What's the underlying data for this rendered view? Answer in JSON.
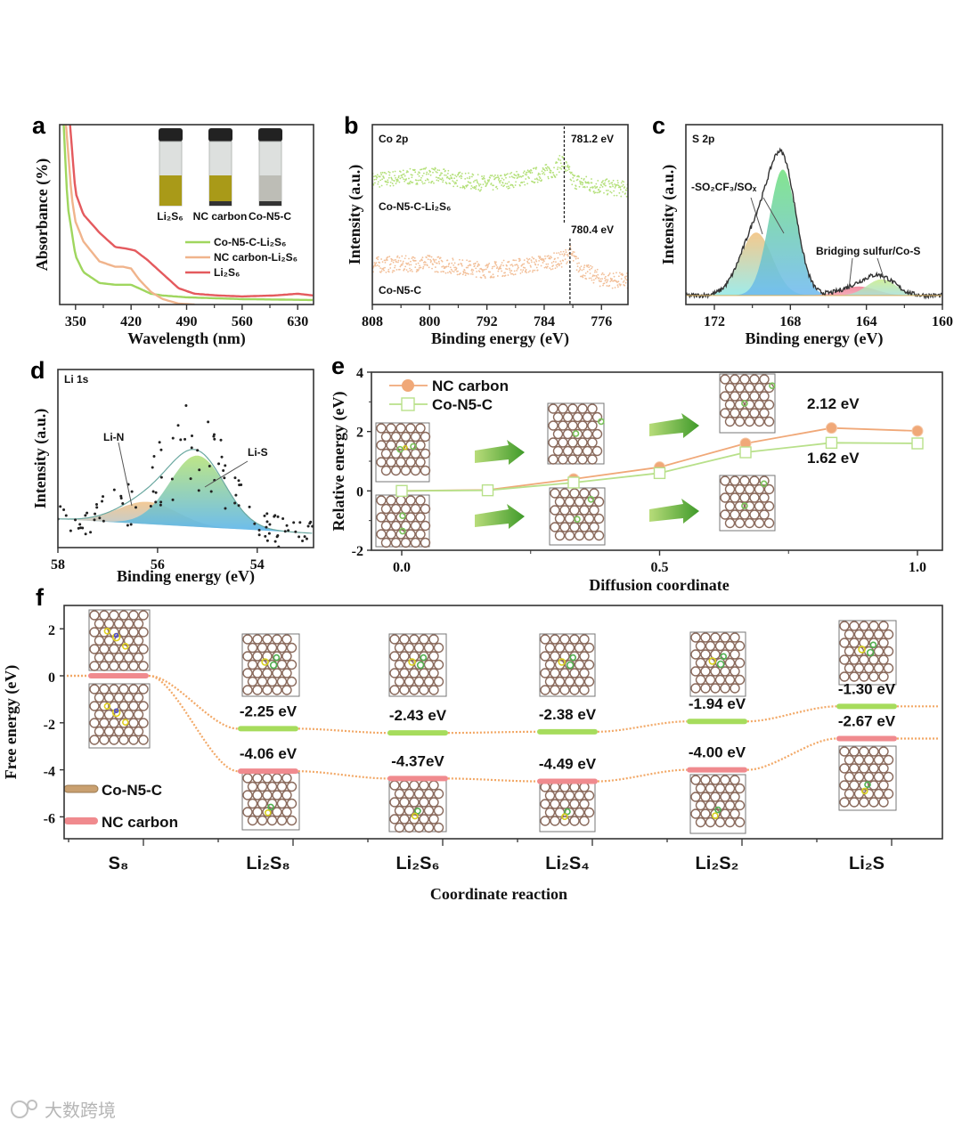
{
  "watermark": "大数跨境",
  "chart_data": [
    {
      "panel": "a",
      "type": "line",
      "xlabel": "Wavelength (nm)",
      "ylabel": "Absorbance (%)",
      "xlim": [
        330,
        650
      ],
      "ylim": [
        0,
        100
      ],
      "xticks": [
        "350",
        "420",
        "490",
        "560",
        "630"
      ],
      "inset_labels": [
        "Li₂S₆",
        "NC carbon",
        "Co-N5-C"
      ],
      "series": [
        {
          "name": "Co-N5-C-Li₂S₆",
          "color": "#9fd65e",
          "x": [
            335,
            340,
            350,
            360,
            380,
            400,
            420,
            430,
            445,
            460,
            490,
            560,
            650
          ],
          "y": [
            100,
            55,
            27,
            18,
            12,
            11,
            11,
            9,
            6,
            5,
            4,
            3,
            2.5
          ]
        },
        {
          "name": "NC carbon-Li₂S₆",
          "color": "#f0b48c",
          "x": [
            338,
            345,
            350,
            360,
            380,
            400,
            410,
            420,
            430,
            445,
            460,
            480,
            500
          ],
          "y": [
            100,
            60,
            46,
            35,
            24,
            21,
            21,
            20,
            14,
            7,
            3,
            0.5,
            0
          ]
        },
        {
          "name": "Li₂S₆",
          "color": "#e45a5e",
          "x": [
            343,
            350,
            360,
            380,
            400,
            415,
            425,
            440,
            460,
            480,
            500,
            530,
            560,
            600,
            630,
            650
          ],
          "y": [
            100,
            62,
            50,
            40,
            32,
            31,
            30,
            25,
            17,
            9,
            6,
            5,
            4.5,
            5,
            6,
            5
          ]
        }
      ]
    },
    {
      "panel": "b",
      "type": "scatter",
      "title": "Co 2p",
      "xlabel": "Binding energy (eV)",
      "ylabel": "Intensity (a.u.)",
      "xlim": [
        808,
        772.3
      ],
      "ylim": [
        0,
        100
      ],
      "xticks": [
        "808",
        "800",
        "792",
        "784",
        "776"
      ],
      "series": [
        {
          "name": "Co-N5-C-Li₂S₆",
          "color": "#b4e07a",
          "x": [
            808,
            800,
            792,
            786,
            782.5,
            781.5,
            780,
            777,
            772.3
          ],
          "y": [
            69,
            72,
            67,
            71,
            75,
            80,
            69,
            66,
            64
          ]
        },
        {
          "name": "Co-N5-C",
          "color": "#f2bf98",
          "x": [
            808,
            800,
            792,
            786,
            781.5,
            780.4,
            779,
            776,
            772.3
          ],
          "y": [
            22,
            23,
            19,
            22,
            25,
            29,
            20,
            14,
            13
          ]
        }
      ],
      "annotations": [
        {
          "text": "781.2 eV",
          "x": 781.2
        },
        {
          "text": "780.4 eV",
          "x": 780.4
        }
      ]
    },
    {
      "panel": "c",
      "type": "area",
      "title": "S 2p",
      "xlabel": "Binding energy (eV)",
      "ylabel": "Intensity (a.u.)",
      "xlim": [
        173.5,
        160
      ],
      "ylim": [
        0,
        100
      ],
      "xticks": [
        "172",
        "168",
        "164",
        "160"
      ],
      "baseline": 5,
      "components": [
        {
          "center": 169.8,
          "amplitude": 35,
          "fwhm": 2.0,
          "colors": [
            "#f2c07a",
            "#8fe8e6"
          ]
        },
        {
          "center": 168.4,
          "amplitude": 70,
          "fwhm": 1.7,
          "colors": [
            "#6fe07c",
            "#6cb8f0"
          ]
        },
        {
          "center": 164.4,
          "amplitude": 5,
          "fwhm": 2.2,
          "colors": [
            "#f07a90",
            "#f2a0b0"
          ]
        },
        {
          "center": 163.2,
          "amplitude": 9,
          "fwhm": 1.8,
          "colors": [
            "#c8ec8a",
            "#a8e0d8"
          ]
        }
      ],
      "annotations": [
        "-SO₂CF₃/SOₓ",
        "Bridging sulfur/Co-S"
      ]
    },
    {
      "panel": "d",
      "type": "area",
      "title": "Li 1s",
      "xlabel": "Binding energy (eV)",
      "ylabel": "Intensity (a.u.)",
      "xlim": [
        58,
        52.87
      ],
      "ylim": [
        0,
        100
      ],
      "xticks": [
        "58",
        "56",
        "54"
      ],
      "baseline": [
        16,
        8
      ],
      "components": [
        {
          "name": "Li-N",
          "center": 56.2,
          "amplitude": 12.5,
          "fwhm": 1.4
        },
        {
          "name": "Li-S",
          "center": 55.2,
          "amplitude": 40,
          "fwhm": 1.3
        }
      ],
      "annotations": [
        "Li-N",
        "Li-S"
      ]
    },
    {
      "panel": "e",
      "type": "line",
      "xlabel": "Diffusion coordinate",
      "ylabel": "Relative energy (eV)",
      "xlim": [
        -0.05,
        1.05
      ],
      "ylim": [
        -2,
        4
      ],
      "xticks": [
        "0.0",
        "0.5",
        "1.0"
      ],
      "yticks": [
        "4",
        "2",
        "0",
        "-2"
      ],
      "x": [
        0,
        0.1667,
        0.3333,
        0.5,
        0.6667,
        0.8333,
        1.0
      ],
      "series": [
        {
          "name": "NC carbon",
          "color": "#f0a878",
          "marker": "circle",
          "y": [
            0,
            0.03,
            0.4,
            0.8,
            1.6,
            2.12,
            2.02
          ]
        },
        {
          "name": "Co-N5-C",
          "color": "#b8e08a",
          "marker": "square",
          "y": [
            0,
            0.02,
            0.28,
            0.6,
            1.3,
            1.62,
            1.6
          ]
        }
      ],
      "annotations": [
        "2.12 eV",
        "1.62 eV"
      ]
    },
    {
      "panel": "f",
      "type": "line",
      "xlabel": "Coordinate reaction",
      "ylabel": "Free energy (eV)",
      "ylim": [
        -7,
        2.9
      ],
      "yticks": [
        "2",
        "0",
        "-2",
        "-4",
        "-6"
      ],
      "categories": [
        "S₈",
        "Li₂S₈",
        "Li₂S₆",
        "Li₂S₄",
        "Li₂S₂",
        "Li₂S"
      ],
      "series": [
        {
          "name": "Co-N5-C",
          "bar_color": "#a6dc5c",
          "legend_color": "#c9a070",
          "values": [
            0,
            -2.25,
            -2.43,
            -2.38,
            -1.94,
            -1.3
          ],
          "labels": [
            null,
            "-2.25 eV",
            "-2.43 eV",
            "-2.38 eV",
            "-1.94 eV",
            "-1.30 eV"
          ]
        },
        {
          "name": "NC carbon",
          "bar_color": "#f08a8e",
          "legend_color": "#f08a8e",
          "values": [
            0,
            -4.06,
            -4.37,
            -4.49,
            -4.0,
            -2.67
          ],
          "labels": [
            null,
            "-4.06 eV",
            "-4.37eV",
            "-4.49 eV",
            "-4.00 eV",
            "-2.67 eV"
          ]
        }
      ]
    }
  ]
}
